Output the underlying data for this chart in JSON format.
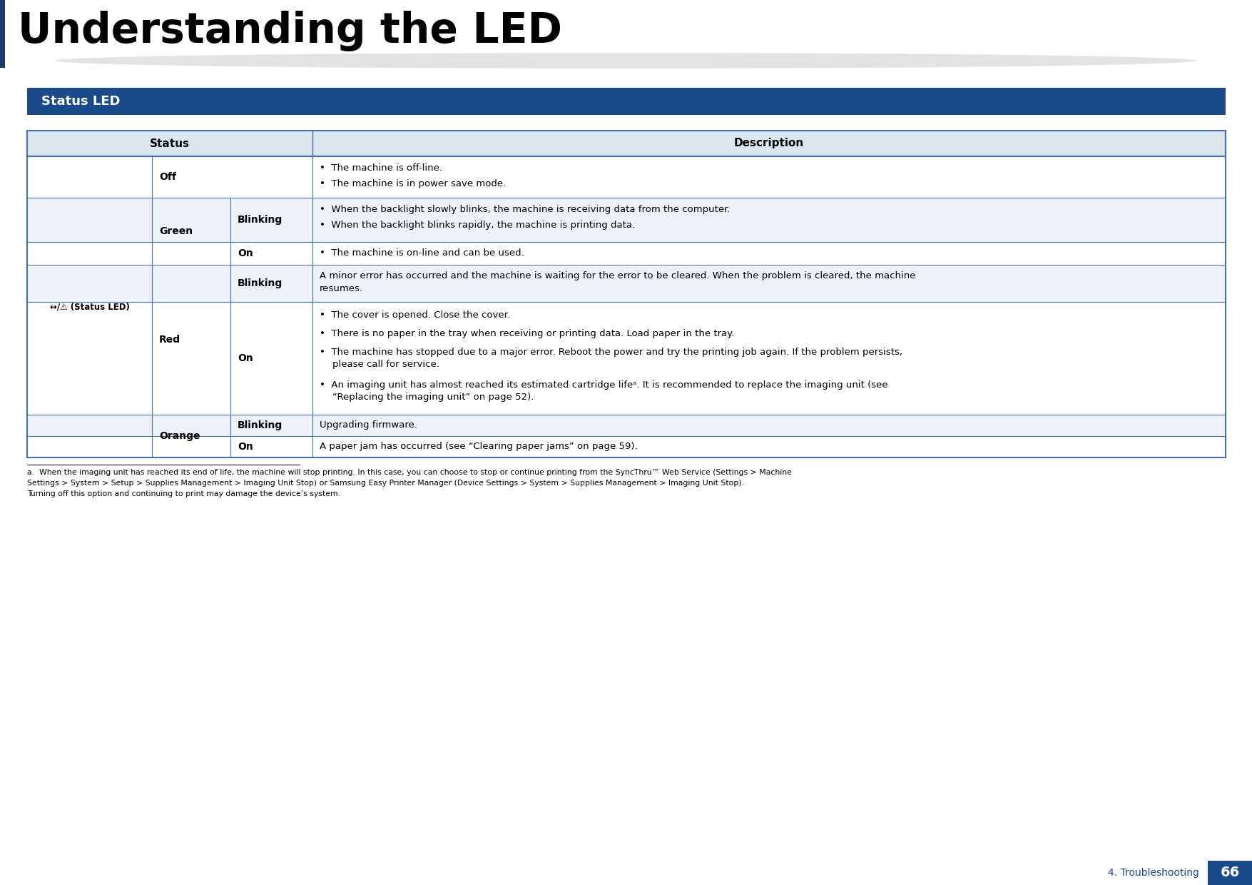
{
  "title": "Understanding the LED",
  "section_title": "Status LED",
  "page_label": "4. Troubleshooting",
  "page_number": "66",
  "section_bg": "#1a4a8a",
  "table_header_bg": "#dce6f1",
  "row_bg": "#ffffff",
  "border_color": "#4a6fa5",
  "title_bar_color": "#1a3a6b",
  "bullet": "•",
  "icon_text": "↔/⚠ (Status LED)",
  "footnote_line1": "a.  When the imaging unit has reached its end of life, the machine will stop printing. In this case, you can choose to stop or continue printing from the SyncThru™ Web Service (Settings > Machine",
  "footnote_line2": "Settings > System > Setup > Supplies Management > Imaging Unit Stop) or Samsung Easy Printer Manager (Device Settings > System > Supplies Management > Imaging Unit Stop).",
  "footnote_line3": "Turning off this option and continuing to print may damage the device’s system.",
  "footnote_bold1": "Settings > Machine",
  "footnote_bold2": "Settings > System > Setup > Supplies Management > Imaging Unit Stop",
  "footnote_bold3": "Device Settings > System > Supplies Management > Imaging Unit Stop"
}
